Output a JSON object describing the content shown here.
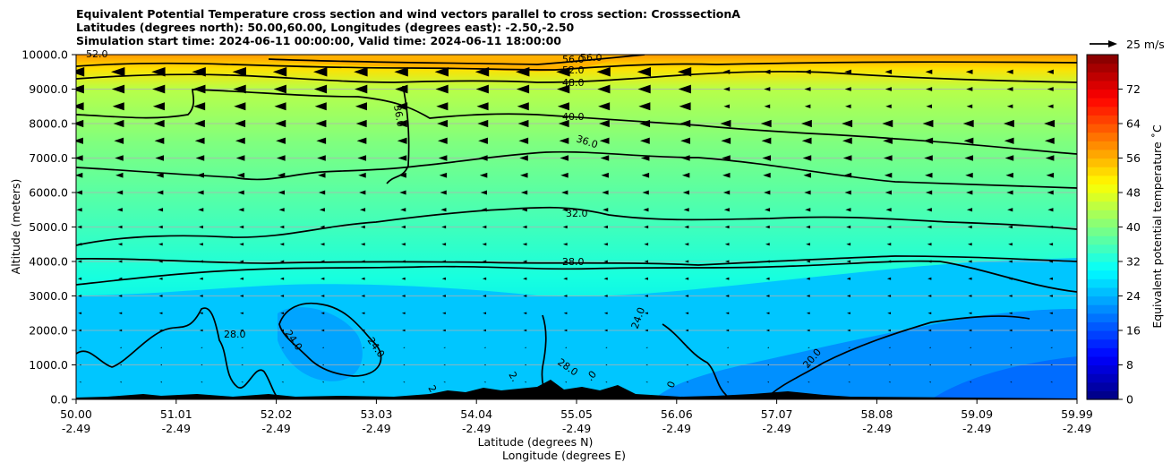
{
  "chart_data": {
    "type": "heatmap",
    "title_lines": [
      "Equivalent Potential Temperature cross section and wind vectors parallel to cross section: CrosssectionA",
      "Latitudes (degrees north): 50.00,60.00, Longitudes (degrees east): -2.50,-2.50",
      "Simulation start time: 2024-06-11 00:00:00, Valid time: 2024-06-11 18:00:00"
    ],
    "xlabel": "Latitude (degrees N)",
    "xlabel2": "Longitude (degrees E)",
    "ylabel": "Altitude (meters)",
    "colorbar_label": "Equivalent potential temperature ˚C",
    "vector_key_label": "25 m/s",
    "x_ticks": [
      {
        "lat": "50.00",
        "lon": "-2.49"
      },
      {
        "lat": "51.01",
        "lon": "-2.49"
      },
      {
        "lat": "52.02",
        "lon": "-2.49"
      },
      {
        "lat": "53.03",
        "lon": "-2.49"
      },
      {
        "lat": "54.04",
        "lon": "-2.49"
      },
      {
        "lat": "55.05",
        "lon": "-2.49"
      },
      {
        "lat": "56.06",
        "lon": "-2.49"
      },
      {
        "lat": "57.07",
        "lon": "-2.49"
      },
      {
        "lat": "58.08",
        "lon": "-2.49"
      },
      {
        "lat": "59.09",
        "lon": "-2.49"
      },
      {
        "lat": "59.99",
        "lon": "-2.49"
      }
    ],
    "xlim": [
      50.0,
      59.99
    ],
    "y_ticks": [
      "0.0",
      "1000.0",
      "2000.0",
      "3000.0",
      "4000.0",
      "5000.0",
      "6000.0",
      "7000.0",
      "8000.0",
      "9000.0",
      "10000.0"
    ],
    "ylim": [
      0,
      10000
    ],
    "colorbar_ticks": [
      "0",
      "8",
      "16",
      "24",
      "32",
      "40",
      "48",
      "56",
      "64",
      "72"
    ],
    "colorbar_range": [
      0,
      80
    ],
    "grid": true,
    "colormap": "jet",
    "contour_labels": [
      "28.0",
      "24.0",
      "24.0",
      "24.0",
      "20.0",
      "28.0",
      "32.0",
      "28.0",
      "36.0",
      "40.0",
      "48.0",
      "52.0",
      "56.0",
      "56.0",
      "52.0",
      "36.0"
    ],
    "contour_label_fragments": [
      "2.",
      "2.",
      ".0",
      "0"
    ]
  }
}
